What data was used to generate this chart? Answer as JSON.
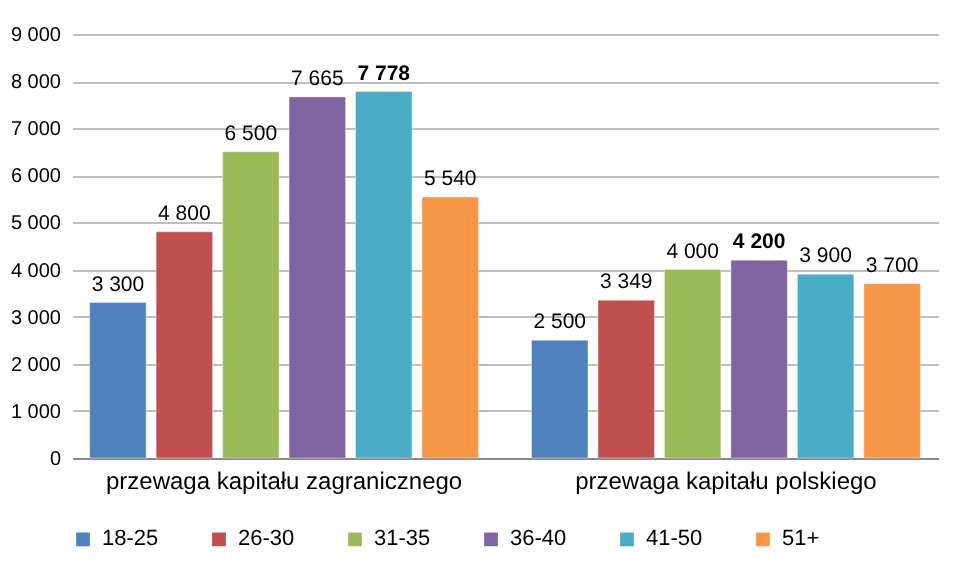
{
  "chart_data": {
    "type": "bar",
    "categories": [
      "przewaga kapitału zagranicznego",
      "przewaga kapitału polskiego"
    ],
    "series": [
      {
        "name": "18-25",
        "color": "#4f81bd",
        "values": [
          3300,
          2500
        ]
      },
      {
        "name": "26-30",
        "color": "#c0504d",
        "values": [
          4800,
          3349
        ]
      },
      {
        "name": "31-35",
        "color": "#9bbb59",
        "values": [
          6500,
          4000
        ]
      },
      {
        "name": "36-40",
        "color": "#8064a2",
        "values": [
          7665,
          4200
        ]
      },
      {
        "name": "41-50",
        "color": "#4bacc6",
        "values": [
          7778,
          3900
        ]
      },
      {
        "name": "51+",
        "color": "#f79646",
        "values": [
          5540,
          3700
        ]
      }
    ],
    "ylim": [
      0,
      9000
    ],
    "yticks": [
      0,
      1000,
      2000,
      3000,
      4000,
      5000,
      6000,
      7000,
      8000,
      9000
    ],
    "grid": "y",
    "legend": "bottom",
    "data_labels": true
  }
}
